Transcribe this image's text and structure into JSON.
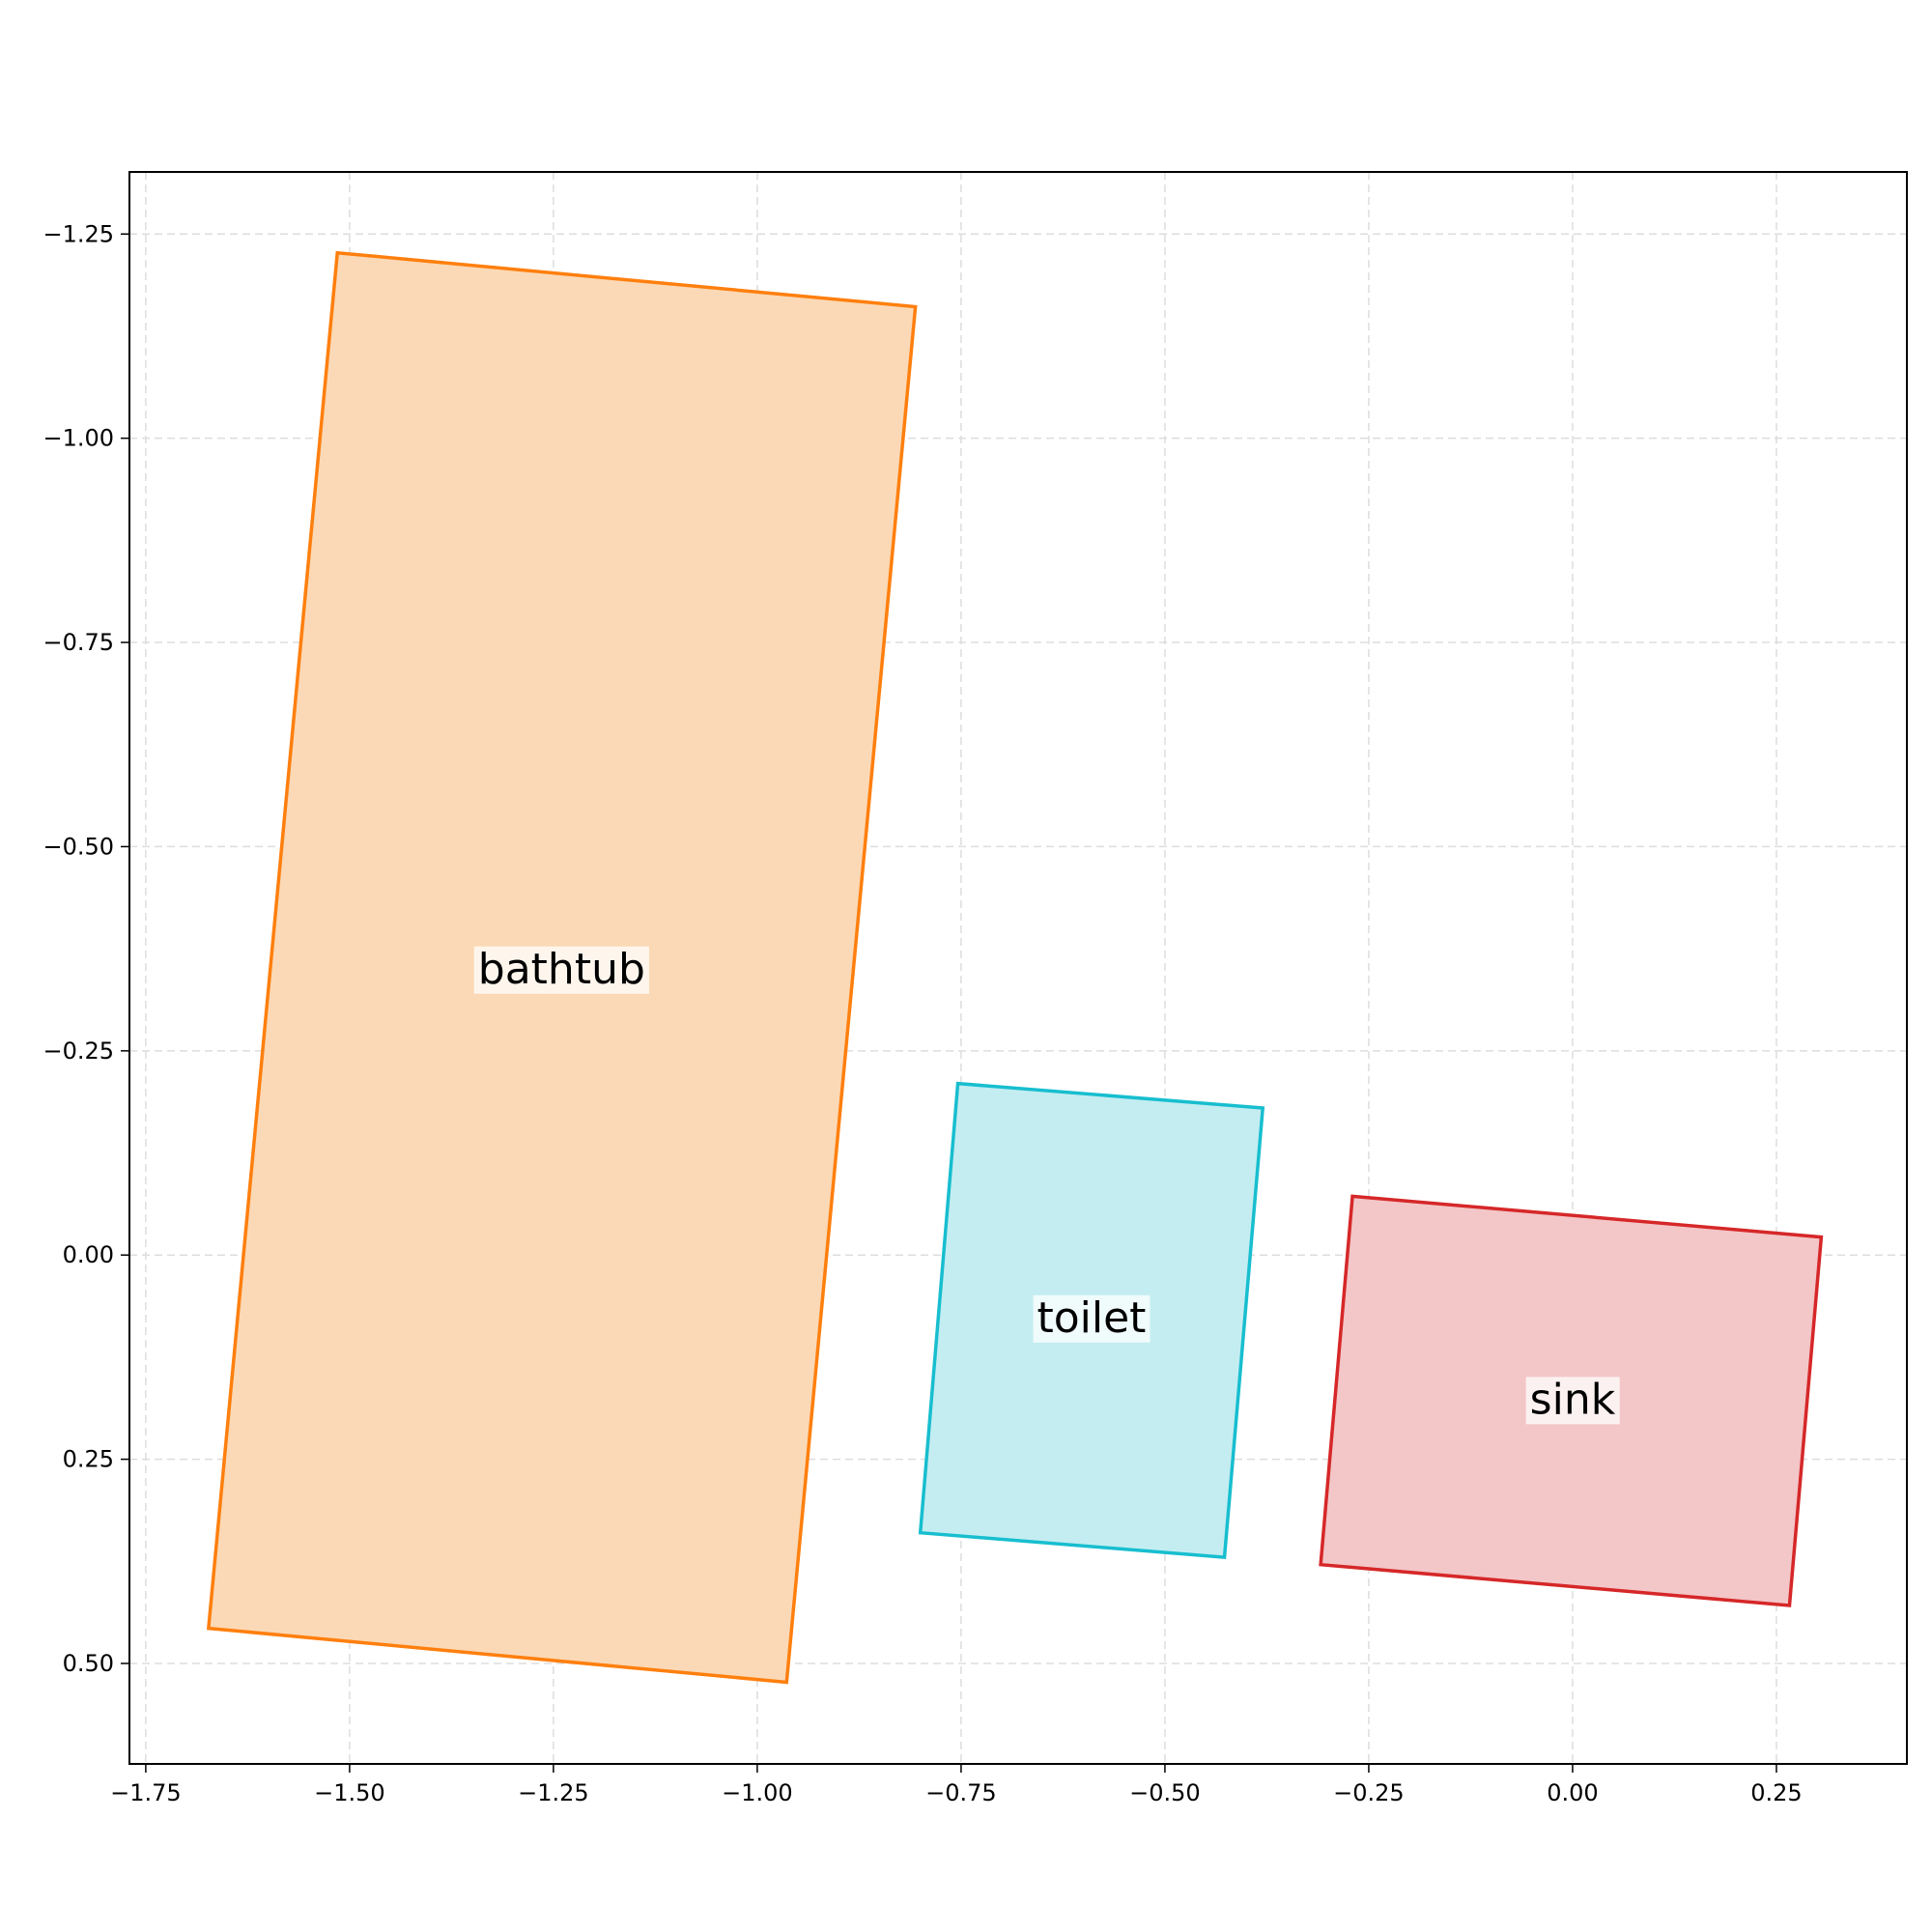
{
  "chart_data": {
    "type": "polygon-layout",
    "xlim": [
      -1.77,
      0.41
    ],
    "ylim": [
      0.623,
      -1.326
    ],
    "y_inverted": true,
    "grid": true,
    "x_ticks": [
      {
        "value": -1.75,
        "label": "−1.75"
      },
      {
        "value": -1.5,
        "label": "−1.50"
      },
      {
        "value": -1.25,
        "label": "−1.25"
      },
      {
        "value": -1.0,
        "label": "−1.00"
      },
      {
        "value": -0.75,
        "label": "−0.75"
      },
      {
        "value": -0.5,
        "label": "−0.50"
      },
      {
        "value": -0.25,
        "label": "−0.25"
      },
      {
        "value": 0.0,
        "label": "0.00"
      },
      {
        "value": 0.25,
        "label": "0.25"
      }
    ],
    "y_ticks": [
      {
        "value": -1.25,
        "label": "−1.25"
      },
      {
        "value": -1.0,
        "label": "−1.00"
      },
      {
        "value": -0.75,
        "label": "−0.75"
      },
      {
        "value": -0.5,
        "label": "−0.50"
      },
      {
        "value": -0.25,
        "label": "−0.25"
      },
      {
        "value": 0.0,
        "label": "0.00"
      },
      {
        "value": 0.25,
        "label": "0.25"
      },
      {
        "value": 0.5,
        "label": "0.50"
      }
    ],
    "objects": [
      {
        "label": "bathtub",
        "edge_color": "#ff7f0e",
        "fill_color": "#fbd9b6",
        "vertices": [
          [
            -1.515,
            -1.227
          ],
          [
            -0.806,
            -1.161
          ],
          [
            -0.964,
            0.523
          ],
          [
            -1.673,
            0.457
          ]
        ],
        "label_at": [
          -1.24,
          -0.35
        ]
      },
      {
        "label": "toilet",
        "edge_color": "#17becf",
        "fill_color": "#c4edf1",
        "vertices": [
          [
            -0.754,
            -0.21
          ],
          [
            -0.38,
            -0.18
          ],
          [
            -0.427,
            0.37
          ],
          [
            -0.8,
            0.34
          ]
        ],
        "label_at": [
          -0.59,
          0.077
        ]
      },
      {
        "label": "sink",
        "edge_color": "#d62728",
        "fill_color": "#f3c6c8",
        "vertices": [
          [
            -0.27,
            -0.072
          ],
          [
            0.305,
            -0.022
          ],
          [
            0.266,
            0.429
          ],
          [
            -0.309,
            0.379
          ]
        ],
        "label_at": [
          0.0,
          0.177
        ]
      }
    ]
  }
}
